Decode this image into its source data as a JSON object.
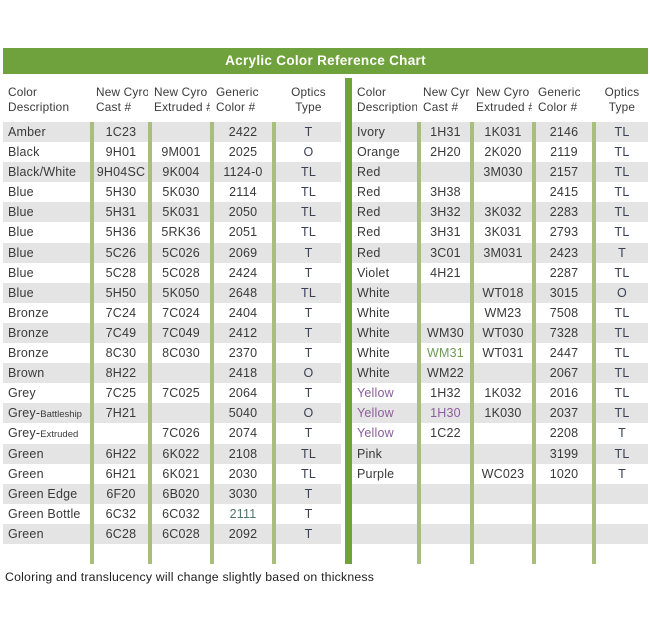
{
  "title": "Acrylic Color Reference Chart",
  "footer": "Coloring and translucency will change slightly based on thickness",
  "colors": {
    "header_bar": "#6FA23C",
    "middle_divider": "#6FA23C",
    "column_line": "#A9BE7D",
    "row_stripe": "#E4E4E4",
    "text": "#3A3A3A",
    "optics_text": "#3B4055",
    "purple": "#8E5C9C",
    "teal": "#51756B",
    "green": "#6E9A58"
  },
  "column_headers": [
    {
      "l1": "Color",
      "l2": "Description"
    },
    {
      "l1": "New Cyro",
      "l2": "Cast #"
    },
    {
      "l1": "New Cyro",
      "l2": "Extruded #"
    },
    {
      "l1": "Generic",
      "l2": "Color #"
    },
    {
      "l1": "Optics",
      "l2": "Type"
    }
  ],
  "tables": [
    {
      "side": "left",
      "empty_rows": 1,
      "rows": [
        [
          "Amber",
          "1C23",
          "",
          "2422",
          "T"
        ],
        [
          "Black",
          "9H01",
          "9M001",
          "2025",
          "O"
        ],
        [
          "Black/White",
          "9H04SC",
          "9K004",
          "1124-0",
          "TL"
        ],
        [
          "Blue",
          "5H30",
          "5K030",
          "2114",
          "TL"
        ],
        [
          "Blue",
          "5H31",
          "5K031",
          "2050",
          "TL"
        ],
        [
          "Blue",
          "5H36",
          "5RK36",
          "2051",
          "TL"
        ],
        [
          "Blue",
          "5C26",
          "5C026",
          "2069",
          "T"
        ],
        [
          "Blue",
          "5C28",
          "5C028",
          "2424",
          "T"
        ],
        [
          "Blue",
          "5H50",
          "5K050",
          "2648",
          "TL"
        ],
        [
          "Bronze",
          "7C24",
          "7C024",
          "2404",
          "T"
        ],
        [
          "Bronze",
          "7C49",
          "7C049",
          "2412",
          "T"
        ],
        [
          "Bronze",
          "8C30",
          "8C030",
          "2370",
          "T"
        ],
        [
          "Brown",
          "8H22",
          "",
          "2418",
          "O"
        ],
        [
          "Grey",
          "7C25",
          "7C025",
          "2064",
          "T"
        ],
        [
          {
            "text": "Grey-",
            "small": "Battleship"
          },
          "7H21",
          "",
          "5040",
          "O"
        ],
        [
          {
            "text": "Grey-",
            "small": "Extruded"
          },
          "",
          "7C026",
          "2074",
          "T"
        ],
        [
          "Green",
          "6H22",
          "6K022",
          "2108",
          "TL"
        ],
        [
          "Green",
          "6H21",
          "6K021",
          "2030",
          "TL"
        ],
        [
          "Green Edge",
          "6F20",
          "6B020",
          "3030",
          "T"
        ],
        [
          "Green Bottle",
          "6C32",
          "6C032",
          {
            "text": "2111",
            "c": "teal"
          },
          "T"
        ],
        [
          "Green",
          "6C28",
          "6C028",
          "2092",
          "T"
        ]
      ]
    },
    {
      "side": "right",
      "empty_rows": 4,
      "rows": [
        [
          "Ivory",
          "1H31",
          "1K031",
          "2146",
          "TL"
        ],
        [
          "Orange",
          "2H20",
          "2K020",
          "2119",
          "TL"
        ],
        [
          "Red",
          "",
          "3M030",
          "2157",
          "TL"
        ],
        [
          "Red",
          "3H38",
          "",
          "2415",
          "TL"
        ],
        [
          "Red",
          "3H32",
          "3K032",
          "2283",
          "TL"
        ],
        [
          "Red",
          "3H31",
          "3K031",
          "2793",
          "TL"
        ],
        [
          "Red",
          "3C01",
          "3M031",
          "2423",
          "T"
        ],
        [
          "Violet",
          "4H21",
          "",
          "2287",
          "TL"
        ],
        [
          "White",
          "",
          "WT018",
          "3015",
          "O"
        ],
        [
          "White",
          "",
          "WM23",
          "7508",
          "TL"
        ],
        [
          "White",
          "WM30",
          "WT030",
          "7328",
          "TL"
        ],
        [
          "White",
          {
            "text": "WM31",
            "c": "green"
          },
          "WT031",
          "2447",
          "TL"
        ],
        [
          "White",
          "WM22",
          "",
          "2067",
          "TL"
        ],
        [
          {
            "text": "Yellow",
            "c": "purple"
          },
          "1H32",
          "1K032",
          "2016",
          "TL"
        ],
        [
          {
            "text": "Yellow",
            "c": "purple"
          },
          {
            "text": "1H30",
            "c": "purple"
          },
          "1K030",
          "2037",
          "TL"
        ],
        [
          {
            "text": "Yellow",
            "c": "purple"
          },
          "1C22",
          "",
          "2208",
          "T"
        ],
        [
          "Pink",
          "",
          "",
          "3199",
          "TL"
        ],
        [
          "Purple",
          "",
          "WC023",
          "1020",
          "T"
        ]
      ]
    }
  ]
}
